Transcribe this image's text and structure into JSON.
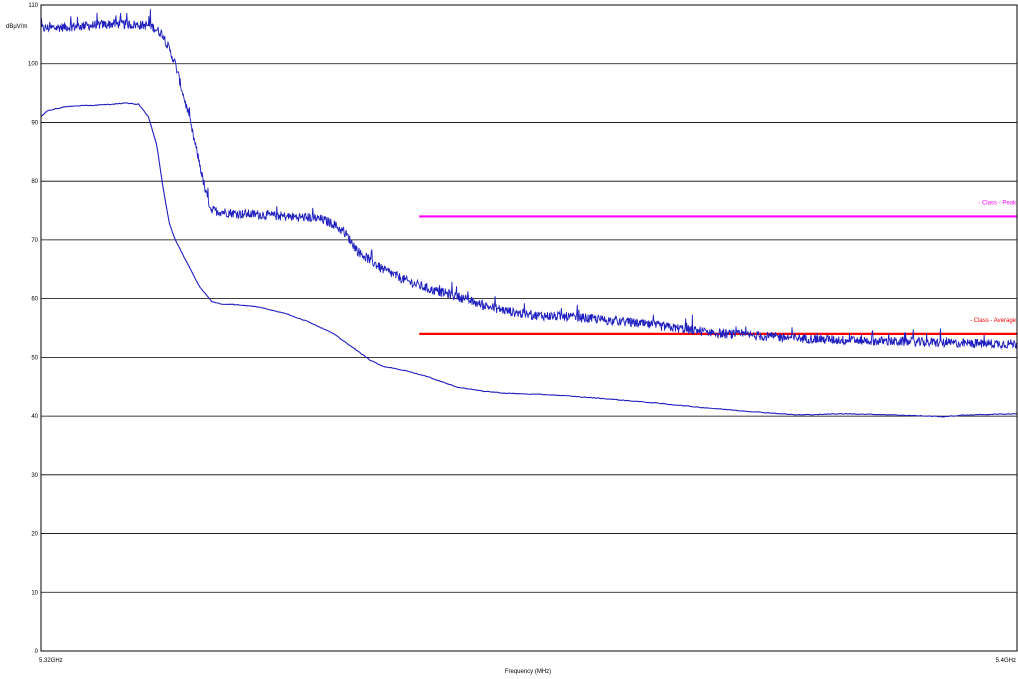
{
  "chart_data": {
    "type": "line",
    "ylabel": "dBµV/m",
    "xlabel": "Frequency (MHz)",
    "ylim": [
      0,
      110
    ],
    "yticks": [
      0,
      10,
      20,
      30,
      40,
      50,
      60,
      70,
      80,
      90,
      100,
      110
    ],
    "x_tick_labels": {
      "start": "5.32GHz",
      "end": "5.4GHz"
    },
    "x_range_mhz": [
      5320,
      5400
    ],
    "grid": "horizontal",
    "series": [
      {
        "color": "#1f1fbf",
        "noisy": true,
        "points": [
          [
            5320,
            106
          ],
          [
            5324,
            106.5
          ],
          [
            5326,
            106.8
          ],
          [
            5328,
            106.6
          ],
          [
            5329,
            106.5
          ],
          [
            5330,
            105
          ],
          [
            5331,
            100
          ],
          [
            5332,
            92
          ],
          [
            5333,
            83
          ],
          [
            5333.5,
            78
          ],
          [
            5334,
            75
          ],
          [
            5336,
            74.5
          ],
          [
            5338,
            74.3
          ],
          [
            5340,
            74
          ],
          [
            5342,
            73.8
          ],
          [
            5343,
            73.5
          ],
          [
            5344,
            72.7
          ],
          [
            5345,
            71
          ],
          [
            5346,
            68
          ],
          [
            5348,
            65
          ],
          [
            5350,
            63
          ],
          [
            5352,
            61.5
          ],
          [
            5354,
            60.5
          ],
          [
            5356,
            59
          ],
          [
            5358,
            58
          ],
          [
            5360,
            57.2
          ],
          [
            5364,
            56.8
          ],
          [
            5368,
            56
          ],
          [
            5372,
            55
          ],
          [
            5376,
            54
          ],
          [
            5380,
            53.5
          ],
          [
            5385,
            53
          ],
          [
            5390,
            52.7
          ],
          [
            5395,
            52.4
          ],
          [
            5400,
            52.3
          ]
        ]
      },
      {
        "color": "#1f1fbf",
        "noisy": false,
        "points": [
          [
            5320,
            91
          ],
          [
            5320.5,
            92
          ],
          [
            5322,
            92.7
          ],
          [
            5325,
            93
          ],
          [
            5327,
            93.3
          ],
          [
            5328,
            93.1
          ],
          [
            5328.8,
            91
          ],
          [
            5329.5,
            86
          ],
          [
            5330,
            79
          ],
          [
            5330.5,
            73
          ],
          [
            5331,
            70
          ],
          [
            5332,
            66
          ],
          [
            5333,
            62
          ],
          [
            5334,
            59.5
          ],
          [
            5335,
            59
          ],
          [
            5336,
            59
          ],
          [
            5338,
            58.5
          ],
          [
            5340,
            57.5
          ],
          [
            5342,
            56
          ],
          [
            5344,
            54
          ],
          [
            5346,
            51
          ],
          [
            5347,
            49.5
          ],
          [
            5348,
            48.5
          ],
          [
            5350,
            47.7
          ],
          [
            5352,
            46.5
          ],
          [
            5354,
            45
          ],
          [
            5356,
            44.3
          ],
          [
            5358,
            43.9
          ],
          [
            5362,
            43.6
          ],
          [
            5366,
            43
          ],
          [
            5370,
            42.3
          ],
          [
            5374,
            41.5
          ],
          [
            5378,
            40.8
          ],
          [
            5382,
            40.2
          ],
          [
            5386,
            40.4
          ],
          [
            5390,
            40.2
          ],
          [
            5394,
            39.9
          ],
          [
            5396,
            40.2
          ],
          [
            5400,
            40.4
          ]
        ]
      }
    ],
    "limit_lines": [
      {
        "label": "- Class  - Peak",
        "value": 74,
        "x_start": 5351,
        "x_end": 5400,
        "color": "#ff00ff"
      },
      {
        "label": "- Class  - Average",
        "value": 54,
        "x_start": 5351,
        "x_end": 5400,
        "color": "#ff0000"
      }
    ]
  }
}
